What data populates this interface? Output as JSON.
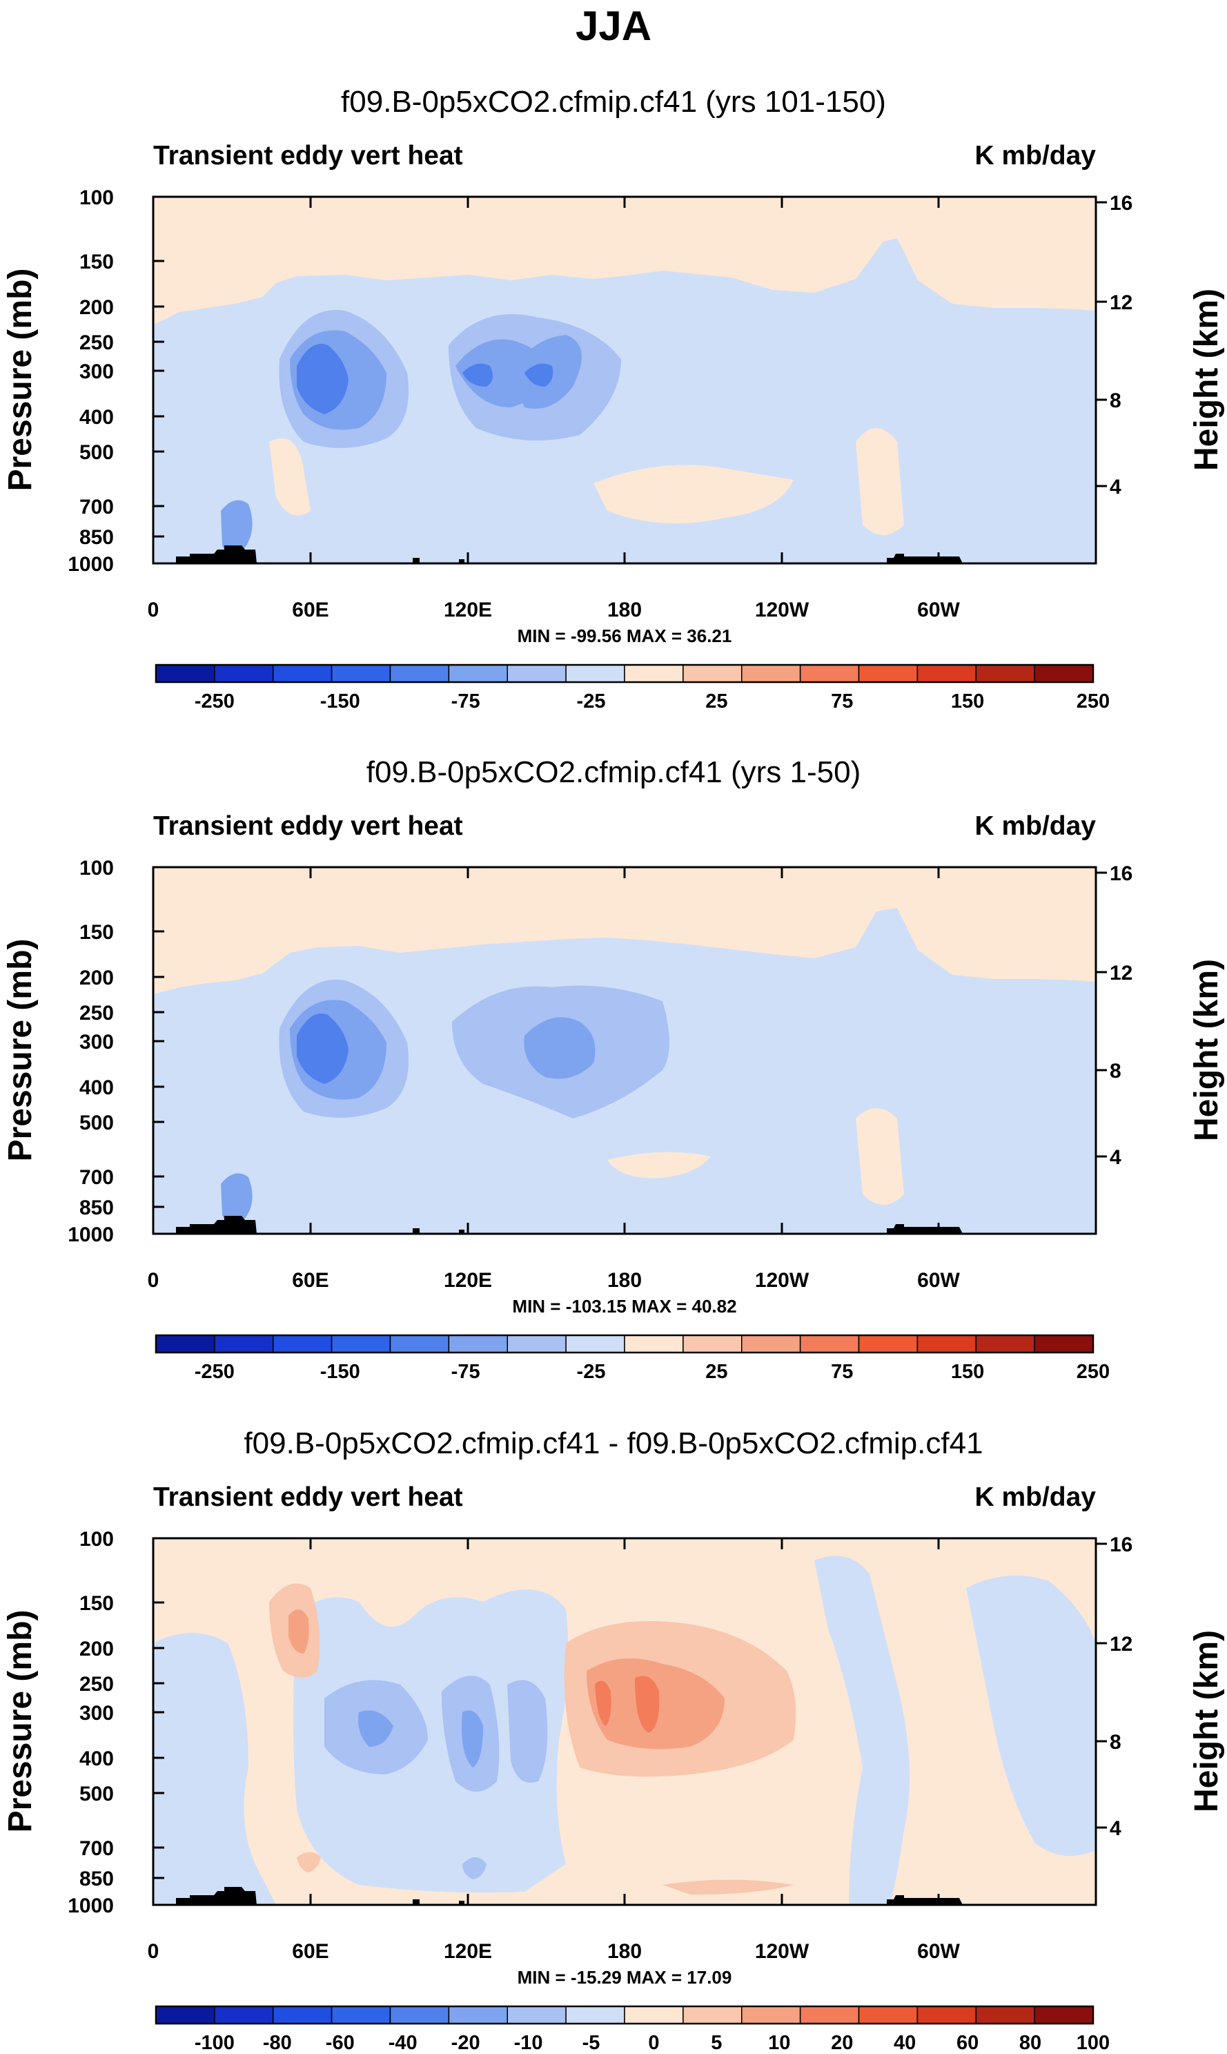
{
  "figure_title": "JJA",
  "colors": {
    "neg_palette": [
      "#0a1aa0",
      "#1530c8",
      "#1f4ee0",
      "#2f64ea",
      "#4f80ec",
      "#7ea3ef",
      "#a9c1f3",
      "#cfdff8"
    ],
    "pos_palette": [
      "#fde7d3",
      "#f8c7ad",
      "#f5a283",
      "#f37c5a",
      "#ed5a33",
      "#d93c1f",
      "#b42716",
      "#8b0f0d"
    ],
    "background_fill": "#fde8d6",
    "low_fill": "#cfdff8",
    "terrain": "#000000"
  },
  "chart_data": [
    {
      "type": "contour",
      "title": "f09.B-0p5xCO2.cfmip.cf41 (yrs 101-150)",
      "left_label": "Transient eddy vert heat",
      "right_label": "K mb/day",
      "ylabel": "Pressure (mb)",
      "ylabel_right": "Height (km)",
      "x_ticks": [
        "0",
        "60E",
        "120E",
        "180",
        "120W",
        "60W"
      ],
      "x_range": [
        0,
        360
      ],
      "y_ticks": [
        "100",
        "150",
        "200",
        "250",
        "300",
        "400",
        "500",
        "700",
        "850",
        "1000"
      ],
      "y_range": [
        100,
        1000
      ],
      "height_ticks": [
        "16",
        "12",
        "8",
        "4"
      ],
      "stats": "MIN = -99.56  MAX =  36.21",
      "colorbar_labels": [
        "-250",
        "-150",
        "-75",
        "-25",
        "25",
        "75",
        "150",
        "250"
      ],
      "contour_levels": [
        -300,
        -250,
        -200,
        -150,
        -100,
        -75,
        -50,
        -25,
        0,
        25,
        50,
        75,
        100,
        150,
        200,
        250,
        300
      ],
      "features": [
        {
          "sign": "neg",
          "lon": 60,
          "p": 300,
          "level": 4
        },
        {
          "sign": "neg",
          "lon": 125,
          "p": 300,
          "level": 2
        },
        {
          "sign": "neg",
          "lon": 145,
          "p": 300,
          "level": 2
        }
      ]
    },
    {
      "type": "contour",
      "title": "f09.B-0p5xCO2.cfmip.cf41 (yrs 1-50)",
      "left_label": "Transient eddy vert heat",
      "right_label": "K mb/day",
      "ylabel": "Pressure (mb)",
      "ylabel_right": "Height (km)",
      "x_ticks": [
        "0",
        "60E",
        "120E",
        "180",
        "120W",
        "60W"
      ],
      "x_range": [
        0,
        360
      ],
      "y_ticks": [
        "100",
        "150",
        "200",
        "250",
        "300",
        "400",
        "500",
        "700",
        "850",
        "1000"
      ],
      "y_range": [
        100,
        1000
      ],
      "height_ticks": [
        "16",
        "12",
        "8",
        "4"
      ],
      "stats": "MIN = -103.15  MAX =  40.82",
      "colorbar_labels": [
        "-250",
        "-150",
        "-75",
        "-25",
        "25",
        "75",
        "150",
        "250"
      ],
      "contour_levels": [
        -300,
        -250,
        -200,
        -150,
        -100,
        -75,
        -50,
        -25,
        0,
        25,
        50,
        75,
        100,
        150,
        200,
        250,
        300
      ],
      "features": [
        {
          "sign": "neg",
          "lon": 60,
          "p": 300,
          "level": 4
        },
        {
          "sign": "neg",
          "lon": 155,
          "p": 300,
          "level": 2
        }
      ]
    },
    {
      "type": "contour",
      "title": "f09.B-0p5xCO2.cfmip.cf41 - f09.B-0p5xCO2.cfmip.cf41",
      "left_label": "Transient eddy vert heat",
      "right_label": "K mb/day",
      "ylabel": "Pressure (mb)",
      "ylabel_right": "Height (km)",
      "x_ticks": [
        "0",
        "60E",
        "120E",
        "180",
        "120W",
        "60W"
      ],
      "x_range": [
        0,
        360
      ],
      "y_ticks": [
        "100",
        "150",
        "200",
        "250",
        "300",
        "400",
        "500",
        "700",
        "850",
        "1000"
      ],
      "y_range": [
        100,
        1000
      ],
      "height_ticks": [
        "16",
        "12",
        "8",
        "4"
      ],
      "stats": "MIN = -15.29  MAX = 17.09",
      "colorbar_labels": [
        "-100",
        "-80",
        "-60",
        "-40",
        "-20",
        "-10",
        "-5",
        "0",
        "5",
        "10",
        "20",
        "40",
        "60",
        "80",
        "100"
      ],
      "contour_levels": [
        -100,
        -80,
        -60,
        -40,
        -20,
        -10,
        -5,
        0,
        5,
        10,
        20,
        40,
        60,
        80,
        100
      ],
      "features": [
        {
          "sign": "pos",
          "lon": 57,
          "p": 230,
          "level": 2
        },
        {
          "sign": "neg",
          "lon": 85,
          "p": 380,
          "level": 2
        },
        {
          "sign": "neg",
          "lon": 122,
          "p": 350,
          "level": 3
        },
        {
          "sign": "pos",
          "lon": 175,
          "p": 320,
          "level": 3
        },
        {
          "sign": "pos",
          "lon": 195,
          "p": 320,
          "level": 3
        }
      ]
    }
  ]
}
